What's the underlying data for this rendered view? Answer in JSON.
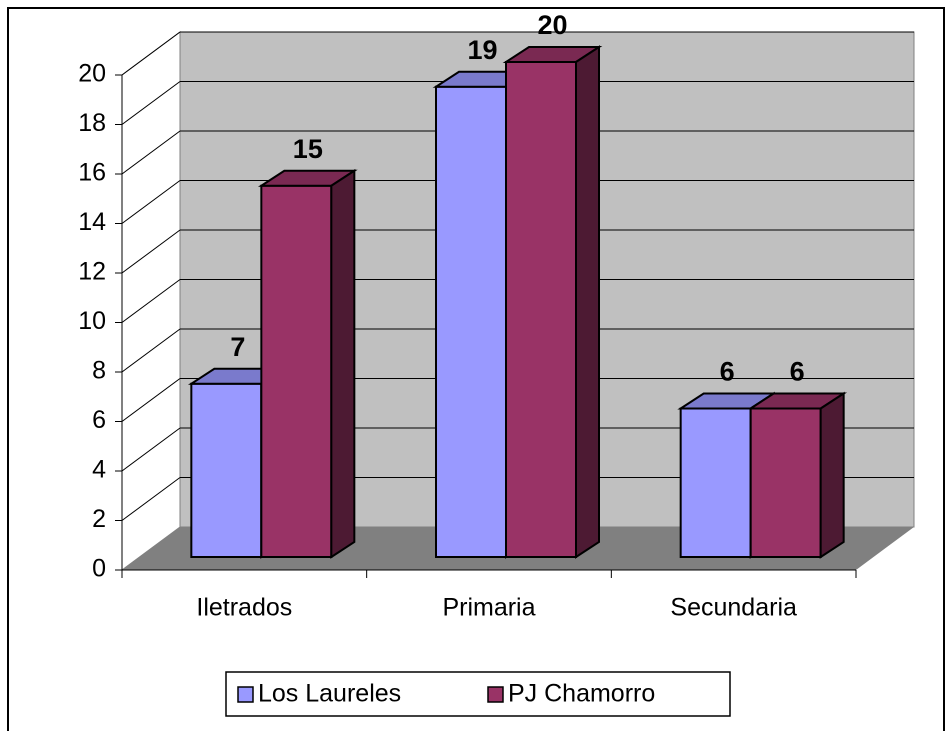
{
  "chart_data": {
    "type": "bar3d",
    "categories": [
      "Iletrados",
      "Primaria",
      "Secundaria"
    ],
    "series": [
      {
        "name": "Los Laureles",
        "color": "#9999ff",
        "values": [
          7,
          19,
          6
        ]
      },
      {
        "name": "PJ Chamorro",
        "color": "#993366",
        "values": [
          15,
          20,
          6
        ]
      }
    ],
    "ylim": [
      0,
      20
    ],
    "yticks": [
      0,
      2,
      4,
      6,
      8,
      10,
      12,
      14,
      16,
      18,
      20
    ],
    "grid": true,
    "legend": "bottom"
  }
}
